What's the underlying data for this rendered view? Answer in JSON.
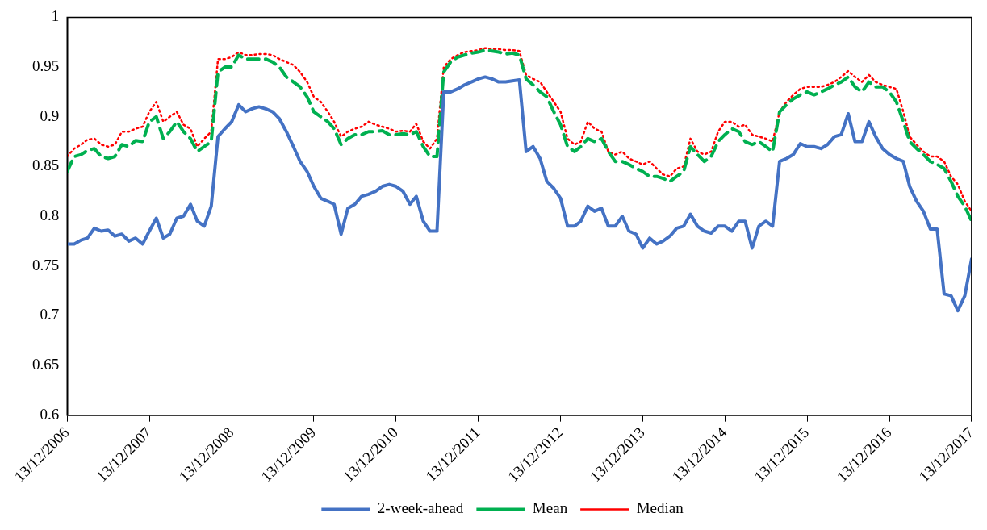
{
  "chart_data": {
    "type": "line",
    "legend": "bottom",
    "grid": false,
    "marker": "none",
    "x": [
      "2006-12-13",
      "2007-01-13",
      "2007-02-13",
      "2007-03-13",
      "2007-04-13",
      "2007-05-13",
      "2007-06-13",
      "2007-07-13",
      "2007-08-13",
      "2007-09-13",
      "2007-10-13",
      "2007-11-13",
      "2007-12-13",
      "2008-01-13",
      "2008-02-13",
      "2008-03-13",
      "2008-04-13",
      "2008-05-13",
      "2008-06-13",
      "2008-07-13",
      "2008-08-13",
      "2008-09-13",
      "2008-10-13",
      "2008-11-13",
      "2008-12-13",
      "2009-01-13",
      "2009-02-13",
      "2009-03-13",
      "2009-04-13",
      "2009-05-13",
      "2009-06-13",
      "2009-07-13",
      "2009-08-13",
      "2009-09-13",
      "2009-10-13",
      "2009-11-13",
      "2009-12-13",
      "2010-01-13",
      "2010-02-13",
      "2010-03-13",
      "2010-04-13",
      "2010-05-13",
      "2010-06-13",
      "2010-07-13",
      "2010-08-13",
      "2010-09-13",
      "2010-10-13",
      "2010-11-13",
      "2010-12-13",
      "2011-01-13",
      "2011-02-13",
      "2011-03-13",
      "2011-04-13",
      "2011-05-13",
      "2011-06-13",
      "2011-07-13",
      "2011-08-13",
      "2011-09-13",
      "2011-10-13",
      "2011-11-13",
      "2011-12-13",
      "2012-01-13",
      "2012-02-13",
      "2012-03-13",
      "2012-04-13",
      "2012-05-13",
      "2012-06-13",
      "2012-07-13",
      "2012-08-13",
      "2012-09-13",
      "2012-10-13",
      "2012-11-13",
      "2012-12-13",
      "2013-01-13",
      "2013-02-13",
      "2013-03-13",
      "2013-04-13",
      "2013-05-13",
      "2013-06-13",
      "2013-07-13",
      "2013-08-13",
      "2013-09-13",
      "2013-10-13",
      "2013-11-13",
      "2013-12-13",
      "2014-01-13",
      "2014-02-13",
      "2014-03-13",
      "2014-04-13",
      "2014-05-13",
      "2014-06-13",
      "2014-07-13",
      "2014-08-13",
      "2014-09-13",
      "2014-10-13",
      "2014-11-13",
      "2014-12-13",
      "2015-01-13",
      "2015-02-13",
      "2015-03-13",
      "2015-04-13",
      "2015-05-13",
      "2015-06-13",
      "2015-07-13",
      "2015-08-13",
      "2015-09-13",
      "2015-10-13",
      "2015-11-13",
      "2015-12-13",
      "2016-01-13",
      "2016-02-13",
      "2016-03-13",
      "2016-04-13",
      "2016-05-13",
      "2016-06-13",
      "2016-07-13",
      "2016-08-13",
      "2016-09-13",
      "2016-10-13",
      "2016-11-13",
      "2016-12-13",
      "2017-01-13",
      "2017-02-13",
      "2017-03-13",
      "2017-04-13",
      "2017-05-13",
      "2017-06-13",
      "2017-07-13",
      "2017-08-13",
      "2017-09-13",
      "2017-10-13",
      "2017-11-13",
      "2017-12-13"
    ],
    "xlim": [
      "2006-12-13",
      "2017-12-13"
    ],
    "xticks": [
      {
        "value": "2006-12-13",
        "label": "13/12/2006"
      },
      {
        "value": "2007-12-13",
        "label": "13/12/2007"
      },
      {
        "value": "2008-12-13",
        "label": "13/12/2008"
      },
      {
        "value": "2009-12-13",
        "label": "13/12/2009"
      },
      {
        "value": "2010-12-13",
        "label": "13/12/2010"
      },
      {
        "value": "2011-12-13",
        "label": "13/12/2011"
      },
      {
        "value": "2012-12-13",
        "label": "13/12/2012"
      },
      {
        "value": "2013-12-13",
        "label": "13/12/2013"
      },
      {
        "value": "2014-12-13",
        "label": "13/12/2014"
      },
      {
        "value": "2015-12-13",
        "label": "13/12/2015"
      },
      {
        "value": "2016-12-13",
        "label": "13/12/2016"
      },
      {
        "value": "2017-12-13",
        "label": "13/12/2017"
      }
    ],
    "ylim": [
      0.6,
      1
    ],
    "yticks": [
      0.6,
      0.65,
      0.7,
      0.75,
      0.8,
      0.85,
      0.9,
      0.95,
      1
    ],
    "series": [
      {
        "name": "2-week-ahead",
        "color": "#4472c4",
        "line_style": "solid",
        "values": [
          0.772,
          0.772,
          0.776,
          0.778,
          0.788,
          0.785,
          0.786,
          0.78,
          0.782,
          0.775,
          0.778,
          0.772,
          0.785,
          0.798,
          0.778,
          0.782,
          0.798,
          0.8,
          0.812,
          0.795,
          0.79,
          0.81,
          0.88,
          0.888,
          0.895,
          0.912,
          0.905,
          0.908,
          0.91,
          0.908,
          0.905,
          0.898,
          0.885,
          0.87,
          0.855,
          0.845,
          0.83,
          0.818,
          0.815,
          0.812,
          0.782,
          0.808,
          0.812,
          0.82,
          0.822,
          0.825,
          0.83,
          0.832,
          0.83,
          0.825,
          0.812,
          0.82,
          0.795,
          0.785,
          0.785,
          0.925,
          0.925,
          0.928,
          0.932,
          0.935,
          0.938,
          0.94,
          0.938,
          0.935,
          0.935,
          0.936,
          0.937,
          0.865,
          0.87,
          0.858,
          0.835,
          0.828,
          0.818,
          0.79,
          0.79,
          0.795,
          0.81,
          0.805,
          0.808,
          0.79,
          0.79,
          0.8,
          0.785,
          0.782,
          0.768,
          0.778,
          0.772,
          0.775,
          0.78,
          0.788,
          0.79,
          0.802,
          0.79,
          0.785,
          0.783,
          0.79,
          0.79,
          0.785,
          0.795,
          0.795,
          0.768,
          0.79,
          0.795,
          0.79,
          0.855,
          0.858,
          0.862,
          0.873,
          0.87,
          0.87,
          0.868,
          0.872,
          0.88,
          0.882,
          0.903,
          0.875,
          0.875,
          0.895,
          0.88,
          0.868,
          0.862,
          0.858,
          0.855,
          0.83,
          0.815,
          0.805,
          0.787,
          0.787,
          0.722,
          0.72,
          0.705,
          0.72,
          0.757
        ]
      },
      {
        "name": "Mean",
        "color": "#00b050",
        "line_style": "dashed",
        "values": [
          0.845,
          0.86,
          0.862,
          0.866,
          0.868,
          0.86,
          0.858,
          0.86,
          0.872,
          0.87,
          0.876,
          0.875,
          0.895,
          0.9,
          0.878,
          0.885,
          0.895,
          0.885,
          0.878,
          0.865,
          0.87,
          0.875,
          0.945,
          0.95,
          0.95,
          0.962,
          0.958,
          0.958,
          0.958,
          0.958,
          0.955,
          0.95,
          0.94,
          0.935,
          0.93,
          0.92,
          0.905,
          0.9,
          0.895,
          0.888,
          0.872,
          0.878,
          0.882,
          0.882,
          0.885,
          0.885,
          0.886,
          0.882,
          0.882,
          0.883,
          0.882,
          0.885,
          0.87,
          0.86,
          0.86,
          0.945,
          0.955,
          0.96,
          0.962,
          0.964,
          0.965,
          0.967,
          0.966,
          0.965,
          0.963,
          0.964,
          0.962,
          0.938,
          0.932,
          0.925,
          0.92,
          0.905,
          0.892,
          0.87,
          0.865,
          0.87,
          0.878,
          0.875,
          0.878,
          0.865,
          0.855,
          0.855,
          0.852,
          0.848,
          0.845,
          0.84,
          0.84,
          0.838,
          0.835,
          0.84,
          0.845,
          0.87,
          0.862,
          0.855,
          0.86,
          0.875,
          0.882,
          0.888,
          0.885,
          0.875,
          0.872,
          0.875,
          0.87,
          0.865,
          0.905,
          0.912,
          0.918,
          0.922,
          0.925,
          0.922,
          0.925,
          0.928,
          0.932,
          0.935,
          0.94,
          0.93,
          0.925,
          0.935,
          0.93,
          0.93,
          0.925,
          0.915,
          0.895,
          0.875,
          0.868,
          0.862,
          0.855,
          0.852,
          0.848,
          0.835,
          0.82,
          0.81,
          0.795
        ]
      },
      {
        "name": "Median",
        "color": "#ff0000",
        "line_style": "dotted",
        "values": [
          0.86,
          0.868,
          0.872,
          0.877,
          0.878,
          0.872,
          0.87,
          0.872,
          0.885,
          0.885,
          0.888,
          0.89,
          0.905,
          0.915,
          0.895,
          0.9,
          0.905,
          0.892,
          0.888,
          0.87,
          0.878,
          0.885,
          0.958,
          0.958,
          0.96,
          0.965,
          0.962,
          0.962,
          0.963,
          0.963,
          0.962,
          0.958,
          0.955,
          0.952,
          0.945,
          0.935,
          0.92,
          0.915,
          0.905,
          0.895,
          0.88,
          0.885,
          0.888,
          0.89,
          0.895,
          0.892,
          0.89,
          0.888,
          0.885,
          0.886,
          0.885,
          0.893,
          0.875,
          0.868,
          0.878,
          0.95,
          0.958,
          0.962,
          0.965,
          0.966,
          0.967,
          0.969,
          0.968,
          0.968,
          0.967,
          0.967,
          0.966,
          0.942,
          0.938,
          0.935,
          0.925,
          0.915,
          0.905,
          0.878,
          0.872,
          0.875,
          0.895,
          0.888,
          0.885,
          0.865,
          0.862,
          0.865,
          0.858,
          0.855,
          0.852,
          0.855,
          0.848,
          0.842,
          0.84,
          0.848,
          0.85,
          0.878,
          0.865,
          0.862,
          0.865,
          0.885,
          0.895,
          0.895,
          0.89,
          0.892,
          0.882,
          0.88,
          0.878,
          0.875,
          0.905,
          0.915,
          0.922,
          0.928,
          0.93,
          0.93,
          0.93,
          0.932,
          0.935,
          0.94,
          0.946,
          0.94,
          0.935,
          0.942,
          0.935,
          0.932,
          0.93,
          0.928,
          0.905,
          0.88,
          0.872,
          0.865,
          0.86,
          0.86,
          0.855,
          0.84,
          0.832,
          0.815,
          0.805
        ]
      }
    ]
  }
}
